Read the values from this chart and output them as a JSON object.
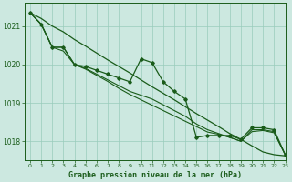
{
  "bg_color": "#cce8e0",
  "grid_color": "#99ccbb",
  "line_color": "#1a5c1a",
  "text_color": "#1a5c1a",
  "xlabel": "Graphe pression niveau de la mer (hPa)",
  "xlim": [
    -0.5,
    23
  ],
  "ylim": [
    1017.5,
    1021.6
  ],
  "yticks": [
    1018,
    1019,
    1020,
    1021
  ],
  "xticks": [
    0,
    1,
    2,
    3,
    4,
    5,
    6,
    7,
    8,
    9,
    10,
    11,
    12,
    13,
    14,
    15,
    16,
    17,
    18,
    19,
    20,
    21,
    22,
    23
  ],
  "series_main": [
    1021.35,
    1021.05,
    1020.45,
    1020.45,
    1020.0,
    1019.95,
    1019.85,
    1019.75,
    1019.65,
    1019.55,
    1020.15,
    1020.05,
    1019.55,
    1019.3,
    1019.1,
    1018.1,
    1018.15,
    1018.15,
    1018.15,
    1018.05,
    1018.35,
    1018.35,
    1018.3,
    1017.65
  ],
  "series_smooth1": [
    1021.35,
    1021.05,
    1020.45,
    1020.45,
    1020.0,
    1019.9,
    1019.75,
    1019.6,
    1019.45,
    1019.3,
    1019.2,
    1019.1,
    1018.95,
    1018.8,
    1018.65,
    1018.45,
    1018.3,
    1018.2,
    1018.1,
    1018.0,
    1018.3,
    1018.3,
    1018.25,
    1017.65
  ],
  "series_smooth2": [
    1021.35,
    1021.05,
    1020.45,
    1020.35,
    1020.0,
    1019.88,
    1019.72,
    1019.56,
    1019.38,
    1019.22,
    1019.08,
    1018.94,
    1018.8,
    1018.66,
    1018.52,
    1018.38,
    1018.24,
    1018.18,
    1018.1,
    1018.0,
    1018.25,
    1018.28,
    1018.22,
    1017.65
  ],
  "series_trend": [
    1021.35,
    1021.2,
    1021.0,
    1020.85,
    1020.65,
    1020.48,
    1020.3,
    1020.12,
    1019.95,
    1019.78,
    1019.6,
    1019.42,
    1019.25,
    1019.08,
    1018.9,
    1018.72,
    1018.55,
    1018.38,
    1018.2,
    1018.05,
    1017.88,
    1017.72,
    1017.65,
    1017.62
  ]
}
